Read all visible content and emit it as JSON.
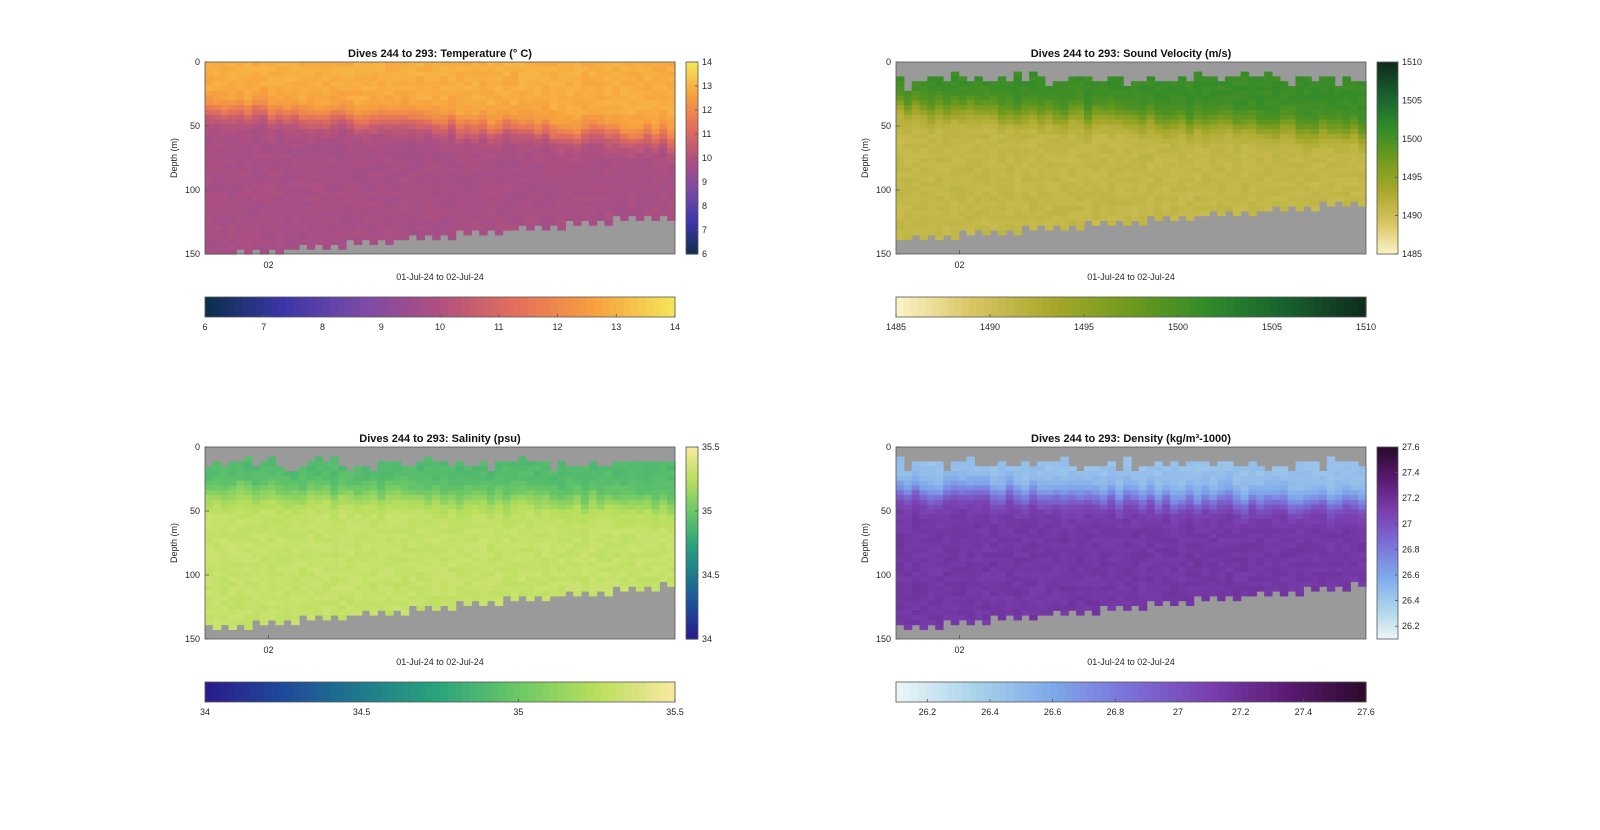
{
  "figure": {
    "background": "#ffffff",
    "mask_color": "#9a9a9a"
  },
  "chart_data": [
    {
      "type": "heatmap",
      "title": "Dives 244 to 293: Temperature (° C)",
      "ylabel": "Depth (m)",
      "xlabel": "01-Jul-24 to 02-Jul-24",
      "x_ticklabels": [
        "02"
      ],
      "y_ticks": [
        0,
        50,
        100,
        150
      ],
      "ylim": [
        0,
        150
      ],
      "colormap": [
        "#0b2f4a",
        "#3b36a8",
        "#7a4aa6",
        "#b0507f",
        "#e5705a",
        "#f7a23e",
        "#f5e75a"
      ],
      "clim": [
        6,
        14
      ],
      "colorbar_side_ticks": [
        "6",
        "7",
        "8",
        "9",
        "10",
        "11",
        "12",
        "13",
        "14"
      ],
      "colorbar_bottom_ticks": [
        "6",
        "7",
        "8",
        "9",
        "10",
        "11",
        "12",
        "13",
        "14"
      ],
      "profile": {
        "surface_value": 12.9,
        "deep_value": 9.8,
        "mixed_layer_depth_start": 38,
        "mixed_layer_depth_end": 60
      },
      "bottom_depth": {
        "start": 150,
        "end": 118
      }
    },
    {
      "type": "heatmap",
      "title": "Dives 244 to 293: Sound Velocity (m/s)",
      "ylabel": "Depth (m)",
      "xlabel": "01-Jul-24 to 02-Jul-24",
      "x_ticklabels": [
        "02"
      ],
      "y_ticks": [
        0,
        50,
        100,
        150
      ],
      "ylim": [
        0,
        150
      ],
      "colormap": [
        "#fbf4c8",
        "#d8c460",
        "#a7a82b",
        "#6e9a1c",
        "#2f8a2a",
        "#17602e",
        "#102a1c"
      ],
      "clim": [
        1485,
        1510
      ],
      "colorbar_side_ticks": [
        "1485",
        "1490",
        "1495",
        "1500",
        "1505",
        "1510"
      ],
      "colorbar_bottom_ticks": [
        "1485",
        "1490",
        "1495",
        "1500",
        "1505",
        "1510"
      ],
      "profile": {
        "surface_value": 1501,
        "deep_value": 1491,
        "mixed_layer_depth_start": 35,
        "mixed_layer_depth_end": 55
      },
      "bottom_depth": {
        "start": 137,
        "end": 108
      }
    },
    {
      "type": "heatmap",
      "title": "Dives 244 to 293: Salinity (psu)",
      "ylabel": "Depth (m)",
      "xlabel": "01-Jul-24 to 02-Jul-24",
      "x_ticklabels": [
        "02"
      ],
      "y_ticks": [
        0,
        50,
        100,
        150
      ],
      "ylim": [
        0,
        150
      ],
      "colormap": [
        "#2a1a8a",
        "#1f4a9a",
        "#1e7a8c",
        "#2aa57a",
        "#6cc866",
        "#b8df5c",
        "#f8eaa0"
      ],
      "clim": [
        34,
        35.5
      ],
      "colorbar_side_ticks": [
        "34",
        "34.5",
        "35",
        "35.5"
      ],
      "colorbar_bottom_ticks": [
        "34",
        "34.5",
        "35",
        "35.5"
      ],
      "profile": {
        "surface_value": 34.9,
        "deep_value": 35.3,
        "mixed_layer_depth_start": 35,
        "mixed_layer_depth_end": 45
      },
      "bottom_depth": {
        "start": 140,
        "end": 106
      }
    },
    {
      "type": "heatmap",
      "title": "Dives 244 to 293: Density (kg/m³-1000)",
      "ylabel": "Depth (m)",
      "xlabel": "01-Jul-24 to 02-Jul-24",
      "x_ticklabels": [
        "02"
      ],
      "y_ticks": [
        0,
        50,
        100,
        150
      ],
      "ylim": [
        0,
        150
      ],
      "colormap": [
        "#eef6f8",
        "#a9d3ea",
        "#7ea8ea",
        "#7b6fd8",
        "#7a3fb0",
        "#5a1a72",
        "#2a0a2a"
      ],
      "clim": [
        26.1,
        27.6
      ],
      "colorbar_side_ticks": [
        "26.2",
        "26.4",
        "26.6",
        "26.8",
        "27",
        "27.2",
        "27.4",
        "27.6"
      ],
      "colorbar_bottom_ticks": [
        "26.2",
        "26.4",
        "26.6",
        "26.8",
        "27",
        "27.2",
        "27.4",
        "27.6"
      ],
      "profile": {
        "surface_value": 26.45,
        "deep_value": 27.15,
        "mixed_layer_depth_start": 35,
        "mixed_layer_depth_end": 45
      },
      "bottom_depth": {
        "start": 140,
        "end": 106
      }
    }
  ]
}
